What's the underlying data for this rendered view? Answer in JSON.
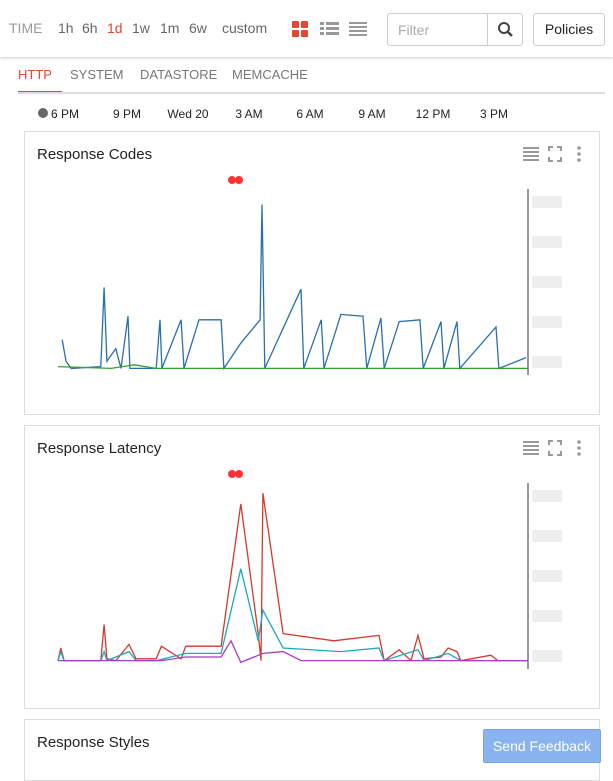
{
  "toolbar": {
    "time_label": "TIME",
    "ranges": [
      "1h",
      "6h",
      "1d",
      "1w",
      "1m",
      "6w",
      "custom"
    ],
    "selected_range": 2,
    "filter_placeholder": "Filter",
    "policies": "Policies"
  },
  "tabs": {
    "items": [
      "HTTP",
      "SYSTEM",
      "DATASTORE",
      "MEMCACHE"
    ],
    "selected": 0
  },
  "timeline": {
    "labels": [
      "6 PM",
      "9 PM",
      "Wed 20",
      "3 AM",
      "6 AM",
      "9 AM",
      "12 PM",
      "3 PM"
    ]
  },
  "panels": [
    {
      "title": "Response Codes",
      "chart": {
        "type": "line",
        "xlim": [
          0,
          100
        ],
        "ylim": [
          0,
          100
        ],
        "series": [
          {
            "color": "#2a6fad",
            "x": [
              0.9,
              1.7,
              2.8,
              9.1,
              9.8,
              10.4,
              12.3,
              13.4,
              14.9,
              15.3,
              20.9,
              21.7,
              22.1,
              26.2,
              26.8,
              30.0,
              34.7,
              35.3,
              38.9,
              43.0,
              43.4,
              44.0,
              51.7,
              52.3,
              56.0,
              56.6,
              60.2,
              64.9,
              65.7,
              68.7,
              69.4,
              72.6,
              77.0,
              77.7,
              81.5,
              82.1,
              84.9,
              85.5,
              93.2,
              93.8,
              99.6
            ],
            "values": [
              18,
              6,
              2,
              3,
              47,
              6,
              13,
              2,
              31,
              2,
              2,
              29,
              2,
              29,
              2,
              29,
              29,
              2,
              16,
              29,
              93,
              2,
              46,
              2,
              29,
              2,
              32,
              31,
              2,
              30,
              2,
              28,
              29,
              2,
              28,
              2,
              28,
              2,
              25,
              2,
              8
            ]
          },
          {
            "color": "#3a9e2e",
            "x": [
              0,
              11.3,
              16.2,
              20.9,
              51.7,
              100
            ],
            "values": [
              3,
              2,
              4,
              2,
              2,
              2
            ]
          }
        ]
      }
    },
    {
      "title": "Response Latency",
      "chart": {
        "type": "line",
        "xlim": [
          0,
          100
        ],
        "ylim": [
          0,
          100
        ],
        "series": [
          {
            "color": "#d23a2c",
            "x": [
              0,
              0.6,
              1.3,
              9.1,
              9.8,
              10.4,
              12.3,
              15.1,
              16.6,
              20.9,
              22,
              26.2,
              27.2,
              30.4,
              34.7,
              38.9,
              42.6,
              43.2,
              43.6,
              47.9,
              58.7,
              68.3,
              69.4,
              72.6,
              75.1,
              76.6,
              77.9,
              81.5,
              83,
              84.9,
              85.7,
              92.1,
              93.6,
              100
            ],
            "values": [
              3,
              10,
              3,
              3,
              23,
              4,
              3,
              12,
              4,
              4,
              11,
              4,
              11,
              11,
              11,
              90,
              18,
              3,
              96,
              18,
              14,
              17,
              3,
              9,
              3,
              17,
              4,
              5,
              10,
              8,
              3,
              6,
              3,
              3
            ]
          },
          {
            "color": "#1fa9b8",
            "x": [
              0,
              0.6,
              1.3,
              9.1,
              9.8,
              10.4,
              15.1,
              16.6,
              20.9,
              27.2,
              34.7,
              38.9,
              42.6,
              43.6,
              47.9,
              60.2,
              68.3,
              69.4,
              76.6,
              77.9,
              83,
              85.7,
              100
            ],
            "values": [
              3,
              8,
              3,
              3,
              8,
              3,
              8,
              3,
              3,
              7,
              7,
              54,
              14,
              31,
              10,
              8,
              10,
              3,
              9,
              3,
              7,
              3,
              3
            ]
          },
          {
            "color": "#a43fbf",
            "x": [
              0,
              22,
              27.2,
              34.7,
              36.8,
              38.9,
              43.6,
              47.9,
              51.7,
              68.3,
              100
            ],
            "values": [
              3,
              3,
              5,
              5,
              14,
              2,
              7,
              8,
              3,
              3,
              3
            ]
          }
        ]
      }
    },
    {
      "title": "Response Styles"
    }
  ],
  "feedback": "Send Feedback"
}
